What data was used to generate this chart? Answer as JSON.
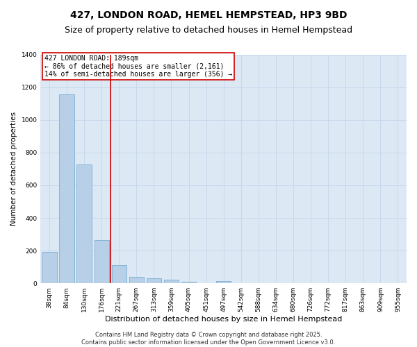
{
  "title": "427, LONDON ROAD, HEMEL HEMPSTEAD, HP3 9BD",
  "subtitle": "Size of property relative to detached houses in Hemel Hempstead",
  "xlabel": "Distribution of detached houses by size in Hemel Hempstead",
  "ylabel": "Number of detached properties",
  "categories": [
    "38sqm",
    "84sqm",
    "130sqm",
    "176sqm",
    "221sqm",
    "267sqm",
    "313sqm",
    "359sqm",
    "405sqm",
    "451sqm",
    "497sqm",
    "542sqm",
    "588sqm",
    "634sqm",
    "680sqm",
    "726sqm",
    "772sqm",
    "817sqm",
    "863sqm",
    "909sqm",
    "955sqm"
  ],
  "values": [
    190,
    1155,
    725,
    265,
    110,
    37,
    30,
    22,
    10,
    0,
    12,
    0,
    0,
    0,
    0,
    0,
    0,
    0,
    0,
    0,
    0
  ],
  "bar_color": "#b8cfe8",
  "bar_edge_color": "#7aafd4",
  "vline_x": 3.5,
  "vline_color": "#cc0000",
  "annotation_text": "427 LONDON ROAD: 189sqm\n← 86% of detached houses are smaller (2,161)\n14% of semi-detached houses are larger (356) →",
  "annotation_box_color": "#cc0000",
  "ylim": [
    0,
    1400
  ],
  "yticks": [
    0,
    200,
    400,
    600,
    800,
    1000,
    1200,
    1400
  ],
  "grid_color": "#c8d8ec",
  "bg_color": "#dce8f4",
  "footer": "Contains HM Land Registry data © Crown copyright and database right 2025.\nContains public sector information licensed under the Open Government Licence v3.0.",
  "title_fontsize": 10,
  "subtitle_fontsize": 9,
  "annotation_fontsize": 7,
  "footer_fontsize": 6,
  "ylabel_fontsize": 7.5,
  "xlabel_fontsize": 8,
  "tick_fontsize": 6.5
}
